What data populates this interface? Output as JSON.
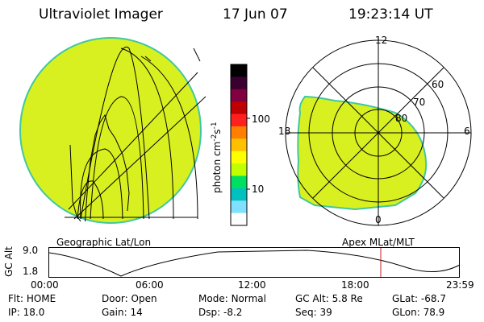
{
  "header": {
    "instrument": "Ultraviolet Imager",
    "date": "17 Jun 07",
    "time": "19:23:14 UT"
  },
  "left_panel": {
    "label": "Geographic Lat/Lon"
  },
  "right_panel": {
    "label": "Apex MLat/MLT",
    "mlt_labels": [
      "12",
      "18",
      "6",
      "0"
    ],
    "lat_labels": [
      "60",
      "70",
      "80"
    ]
  },
  "colorbar": {
    "unit_main": "photon cm",
    "unit_exp1": "-2",
    "unit_mid": "s",
    "unit_exp2": "-1",
    "ticks": [
      "100",
      "10"
    ],
    "colors": [
      "#000000",
      "#3a0030",
      "#800040",
      "#c00000",
      "#ff2020",
      "#ff8000",
      "#ffc000",
      "#ffff00",
      "#c0ff00",
      "#00e060",
      "#00c0c0",
      "#80e0ff",
      "#ffffff"
    ]
  },
  "altitude_plot": {
    "ylabel": "GC Alt",
    "y_ticks": [
      "9.0",
      "1.8"
    ],
    "x_ticks": [
      "00:00",
      "06:00",
      "12:00",
      "18:00",
      "23:59"
    ]
  },
  "footer": {
    "row1": [
      {
        "key": "Flt:",
        "value": "HOME"
      },
      {
        "key": "Door:",
        "value": "Open"
      },
      {
        "key": "Mode:",
        "value": "Normal"
      },
      {
        "key": "GC Alt:",
        "value": "5.8 Re"
      },
      {
        "key": "GLat:",
        "value": "-68.7"
      }
    ],
    "row2": [
      {
        "key": "IP:",
        "value": "18.0"
      },
      {
        "key": "Gain:",
        "value": "14"
      },
      {
        "key": "Dsp:",
        "value": "-8.2"
      },
      {
        "key": "Seq:",
        "value": "39"
      },
      {
        "key": "GLon:",
        "value": "78.9"
      }
    ]
  },
  "colors": {
    "emission": "#d8f020",
    "emission_edge": "#40c8a0",
    "marker": "#c02020"
  }
}
